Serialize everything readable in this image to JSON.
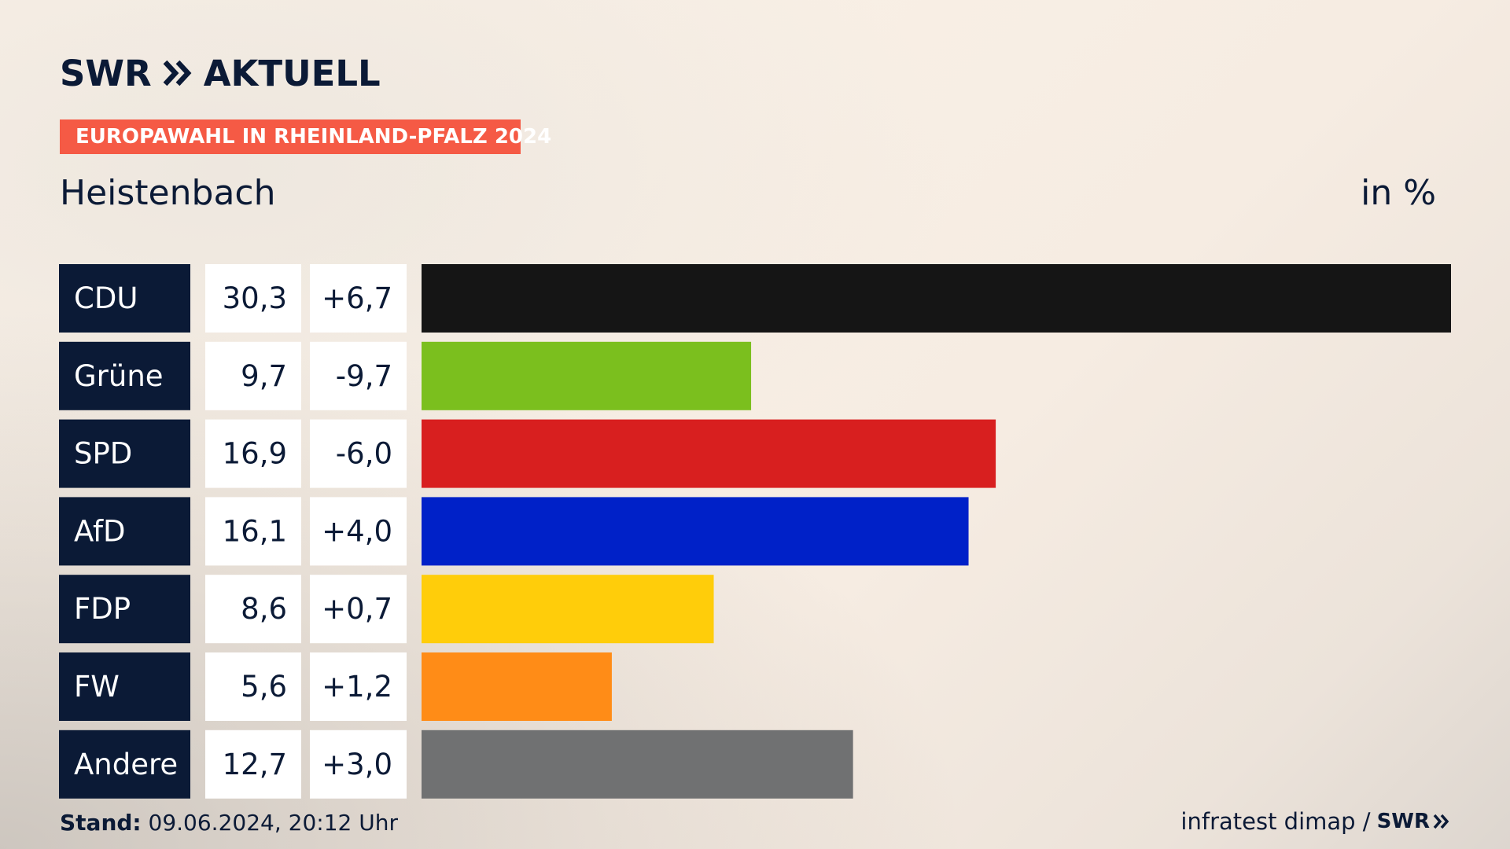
{
  "header": {
    "logo_text": "SWR",
    "logo_suffix": "AKTUELL",
    "tag": "EUROPAWAHL IN RHEINLAND-PFALZ 2024",
    "place": "Heistenbach",
    "unit": "in %"
  },
  "footer": {
    "stand_label": "Stand:",
    "stand_value": " 09.06.2024, 20:12 Uhr",
    "source": "infratest dimap /",
    "source_logo": "SWR"
  },
  "colors": {
    "label_bg": "#0b1a36",
    "tag_bg": "#f55a45"
  },
  "chart_data": {
    "type": "bar",
    "orientation": "horizontal",
    "categories": [
      "CDU",
      "Grüne",
      "SPD",
      "AfD",
      "FDP",
      "FW",
      "Andere"
    ],
    "values": [
      30.3,
      9.7,
      16.9,
      16.1,
      8.6,
      5.6,
      12.7
    ],
    "value_labels": [
      "30,3",
      "9,7",
      "16,9",
      "16,1",
      "8,6",
      "5,6",
      "12,7"
    ],
    "changes": [
      6.7,
      -9.7,
      -6.0,
      4.0,
      0.7,
      1.2,
      3.0
    ],
    "change_labels": [
      "+6,7",
      "-9,7",
      "-6,0",
      "+4,0",
      "+0,7",
      "+1,2",
      "+3,0"
    ],
    "colors": [
      "#151515",
      "#7bbf1e",
      "#d81f1f",
      "#0021c8",
      "#ffcd0a",
      "#ff8c17",
      "#707172"
    ],
    "xlim": [
      0,
      30.3
    ],
    "grid": false,
    "title": "",
    "xlabel": "",
    "ylabel": ""
  }
}
